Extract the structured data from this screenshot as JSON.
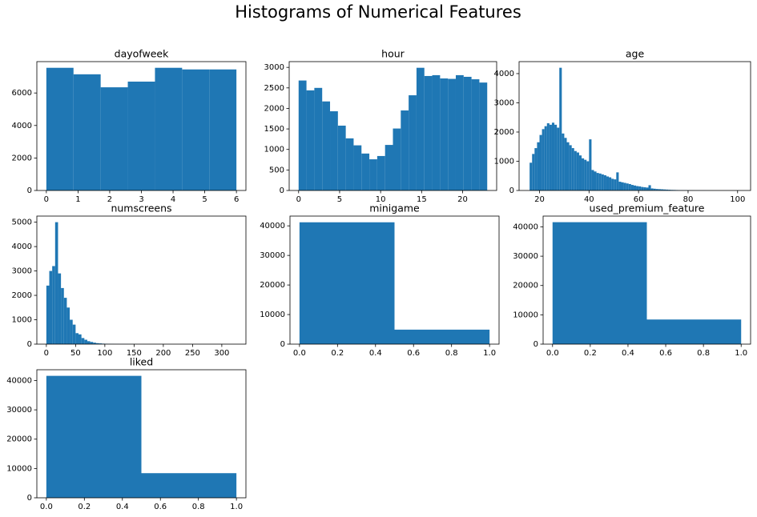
{
  "title": "Histograms of Numerical Features",
  "chart_data": [
    {
      "type": "histogram",
      "title": "dayofweek",
      "color": "#1f77b4",
      "bins": [
        0,
        0.8571,
        1.7143,
        2.5714,
        3.4286,
        4.2857,
        5.1429,
        6
      ],
      "values": [
        7550,
        7150,
        6350,
        6700,
        7550,
        7450,
        7450
      ],
      "xlim": [
        -0.3,
        6.3
      ],
      "ylim": [
        0,
        7930
      ],
      "xticks": [
        0,
        1,
        2,
        3,
        4,
        5,
        6
      ],
      "yticks": [
        0,
        2000,
        4000,
        6000
      ]
    },
    {
      "type": "histogram",
      "title": "hour",
      "color": "#1f77b4",
      "bins": [
        0,
        0.9583,
        1.9167,
        2.875,
        3.8333,
        4.7917,
        5.75,
        6.7083,
        7.6667,
        8.625,
        9.5833,
        10.5417,
        11.5,
        12.4583,
        13.4167,
        14.375,
        15.3333,
        16.2917,
        17.25,
        18.2083,
        19.1667,
        20.125,
        21.0833,
        22.0417,
        23
      ],
      "values": [
        2680,
        2440,
        2500,
        2170,
        1930,
        1580,
        1270,
        1100,
        900,
        760,
        840,
        1110,
        1510,
        1950,
        2320,
        2990,
        2790,
        2810,
        2730,
        2720,
        2810,
        2770,
        2710,
        2630
      ],
      "xlim": [
        -1.15,
        24.15
      ],
      "ylim": [
        0,
        3140
      ],
      "xticks": [
        0,
        5,
        10,
        15,
        20
      ],
      "yticks": [
        0,
        500,
        1000,
        1500,
        2000,
        2500,
        3000
      ]
    },
    {
      "type": "histogram",
      "title": "age",
      "color": "#1f77b4",
      "bins": [
        16,
        17,
        18,
        19,
        20,
        21,
        22,
        23,
        24,
        25,
        26,
        27,
        28,
        29,
        30,
        31,
        32,
        33,
        34,
        35,
        36,
        37,
        38,
        39,
        40,
        41,
        42,
        43,
        44,
        45,
        46,
        47,
        48,
        49,
        50,
        51,
        52,
        53,
        54,
        55,
        56,
        57,
        58,
        59,
        60,
        61,
        62,
        63,
        64,
        65,
        66,
        67,
        68,
        69,
        70,
        71,
        72,
        73,
        74,
        75,
        76,
        77,
        78,
        79,
        80,
        81,
        82,
        83,
        84,
        85,
        86,
        87,
        88,
        89,
        90,
        91,
        92,
        93,
        94,
        95,
        96,
        97,
        98,
        99,
        100,
        101
      ],
      "values": [
        950,
        1250,
        1450,
        1650,
        1900,
        2100,
        2200,
        2300,
        2250,
        2320,
        2250,
        2150,
        4200,
        1950,
        1800,
        1650,
        1550,
        1450,
        1350,
        1300,
        1200,
        1100,
        1050,
        1000,
        1750,
        700,
        650,
        600,
        580,
        550,
        520,
        480,
        450,
        400,
        380,
        620,
        300,
        280,
        260,
        240,
        220,
        190,
        170,
        150,
        140,
        120,
        110,
        100,
        180,
        70,
        60,
        50,
        45,
        40,
        35,
        30,
        25,
        20,
        18,
        15,
        12,
        10,
        9,
        8,
        7,
        6,
        5,
        4,
        4,
        3,
        3,
        2,
        2,
        2,
        1,
        1,
        1,
        1,
        1,
        1,
        1,
        1,
        1,
        1,
        2
      ],
      "xlim": [
        11.75,
        105.25
      ],
      "ylim": [
        0,
        4410
      ],
      "xticks": [
        20,
        40,
        60,
        80,
        100
      ],
      "yticks": [
        0,
        1000,
        2000,
        3000,
        4000
      ]
    },
    {
      "type": "histogram",
      "title": "numscreens",
      "color": "#1f77b4",
      "bins": [
        0,
        5,
        10,
        15,
        20,
        25,
        30,
        35,
        40,
        45,
        50,
        55,
        60,
        65,
        70,
        75,
        80,
        85,
        90,
        95,
        100,
        105,
        110,
        115,
        120,
        125,
        130,
        135,
        140,
        145,
        150,
        155,
        160,
        165,
        170,
        175,
        180,
        185,
        190,
        195,
        200,
        205,
        210,
        215,
        220,
        225,
        230,
        235,
        240,
        245,
        250,
        255,
        260,
        265,
        270,
        275,
        280,
        285,
        290,
        295,
        300,
        305,
        310,
        315,
        320,
        325
      ],
      "values": [
        2400,
        3000,
        3200,
        5000,
        2900,
        2300,
        1900,
        1500,
        1000,
        800,
        450,
        400,
        250,
        180,
        120,
        90,
        60,
        40,
        30,
        20,
        15,
        10,
        8,
        6,
        5,
        4,
        3,
        3,
        2,
        2,
        2,
        1,
        1,
        1,
        1,
        1,
        1,
        0,
        0,
        0,
        0,
        1,
        0,
        0,
        0,
        0,
        0,
        0,
        0,
        0,
        0,
        0,
        0,
        0,
        0,
        0,
        0,
        0,
        0,
        0,
        0,
        0,
        0,
        0,
        1
      ],
      "xlim": [
        -16.25,
        341.25
      ],
      "ylim": [
        0,
        5250
      ],
      "xticks": [
        0,
        50,
        100,
        150,
        200,
        250,
        300
      ],
      "yticks": [
        0,
        1000,
        2000,
        3000,
        4000,
        5000
      ]
    },
    {
      "type": "histogram",
      "title": "minigame",
      "color": "#1f77b4",
      "bins": [
        0,
        0.5,
        1
      ],
      "values": [
        41200,
        4900
      ],
      "xlim": [
        -0.05,
        1.05
      ],
      "ylim": [
        0,
        43300
      ],
      "xticks": [
        {
          "value": 0,
          "label": "0.0"
        },
        0.2,
        0.4,
        0.6,
        0.8,
        {
          "value": 1,
          "label": "1.0"
        }
      ],
      "yticks": [
        0,
        10000,
        20000,
        30000,
        40000
      ]
    },
    {
      "type": "histogram",
      "title": "used_premium_feature",
      "color": "#1f77b4",
      "bins": [
        0,
        0.5,
        1
      ],
      "values": [
        41600,
        8400
      ],
      "xlim": [
        -0.05,
        1.05
      ],
      "ylim": [
        0,
        43680
      ],
      "xticks": [
        {
          "value": 0,
          "label": "0.0"
        },
        0.2,
        0.4,
        0.6,
        0.8,
        {
          "value": 1,
          "label": "1.0"
        }
      ],
      "yticks": [
        0,
        10000,
        20000,
        30000,
        40000
      ]
    },
    {
      "type": "histogram",
      "title": "liked",
      "color": "#1f77b4",
      "bins": [
        0,
        0.5,
        1
      ],
      "values": [
        41600,
        8400
      ],
      "xlim": [
        -0.05,
        1.05
      ],
      "ylim": [
        0,
        43680
      ],
      "xticks": [
        {
          "value": 0,
          "label": "0.0"
        },
        0.2,
        0.4,
        0.6,
        0.8,
        {
          "value": 1,
          "label": "1.0"
        }
      ],
      "yticks": [
        0,
        10000,
        20000,
        30000,
        40000
      ]
    }
  ]
}
